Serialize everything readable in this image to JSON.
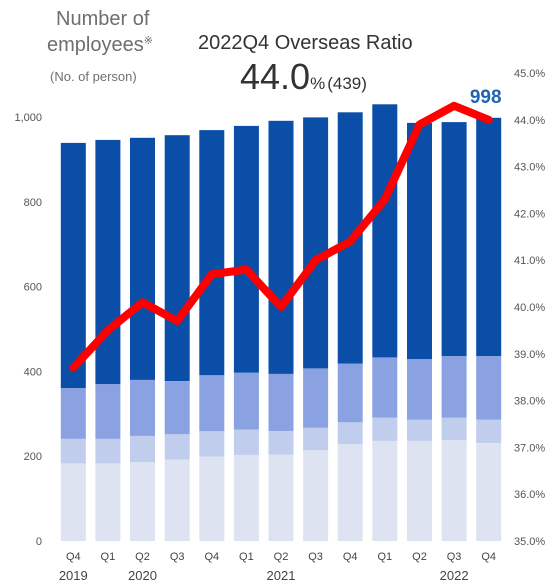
{
  "header": {
    "y_title_line1": "Number of",
    "y_title_line2": "employees",
    "y_title_mark": "※",
    "y_unit": "(No. of person)",
    "ratio_title": "2022Q4 Overseas Ratio",
    "ratio_value": "44.0",
    "ratio_unit": "%",
    "ratio_count": "(439)"
  },
  "chart_data": {
    "type": "bar",
    "stacked": true,
    "categories": [
      "Q4",
      "Q1",
      "Q2",
      "Q3",
      "Q4",
      "Q1",
      "Q2",
      "Q3",
      "Q4",
      "Q1",
      "Q2",
      "Q3",
      "Q4"
    ],
    "year_labels": [
      {
        "label": "2019",
        "index": 0
      },
      {
        "label": "2020",
        "index": 2
      },
      {
        "label": "2021",
        "index": 6
      },
      {
        "label": "2022",
        "index": 11
      }
    ],
    "series": [
      {
        "values": [
          183,
          183,
          186,
          192,
          199,
          203,
          204,
          214,
          228,
          236,
          236,
          238,
          231
        ],
        "color": "#dde3f1"
      },
      {
        "values": [
          58,
          58,
          62,
          60,
          60,
          60,
          55,
          53,
          52,
          55,
          50,
          53,
          55
        ],
        "color": "#c0cdec"
      },
      {
        "values": [
          120,
          129,
          132,
          125,
          132,
          134,
          135,
          140,
          138,
          142,
          143,
          145,
          150
        ],
        "color": "#8aa2e2"
      },
      {
        "values": [
          578,
          576,
          571,
          580,
          578,
          582,
          597,
          592,
          593,
          597,
          557,
          552,
          562
        ],
        "color": "#0a4ea7"
      }
    ],
    "totals_label": {
      "index": 12,
      "text": "998",
      "color": "#1f64b4"
    },
    "line": {
      "axis": "right",
      "values": [
        38.7,
        39.5,
        40.1,
        39.7,
        40.7,
        40.8,
        40.0,
        41.0,
        41.4,
        42.3,
        43.9,
        44.3,
        44.0
      ],
      "color": "#ff0000"
    },
    "y_left": {
      "min": 0,
      "max": 1000,
      "ticks": [
        "0",
        "200",
        "400",
        "600",
        "800",
        "1,000"
      ],
      "tick_values": [
        0,
        200,
        400,
        600,
        800,
        1000
      ]
    },
    "y_right": {
      "min": 35.0,
      "max": 45.0,
      "ticks": [
        "35.0%",
        "36.0%",
        "37.0%",
        "38.0%",
        "39.0%",
        "40.0%",
        "41.0%",
        "42.0%",
        "43.0%",
        "44.0%",
        "45.0%"
      ],
      "tick_values": [
        35,
        36,
        37,
        38,
        39,
        40,
        41,
        42,
        43,
        44,
        45
      ]
    },
    "grid": false
  }
}
